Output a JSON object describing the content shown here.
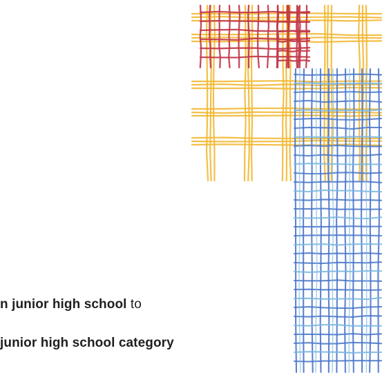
{
  "text_lines": {
    "line1_bold": "n junior high school",
    "line1_normal": " to",
    "line2_bold": "junior high school category"
  },
  "decoration": {
    "red_pattern_color": "#c23a4a",
    "yellow_pattern_color": "#f2b834",
    "blue_pattern_color": "#4a76c9",
    "blue_accent_color": "#7ab6e0"
  }
}
